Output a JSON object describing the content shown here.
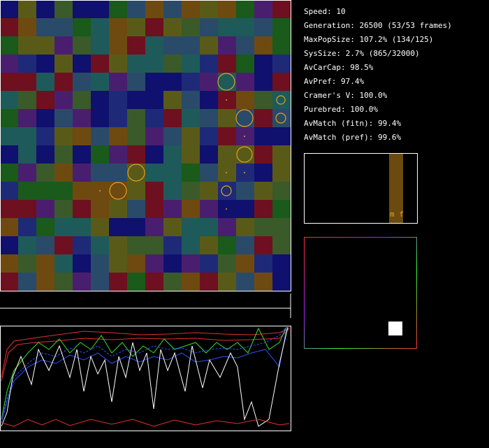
{
  "stats": [
    "Speed: 10",
    "Generation: 26500 (53/53 frames)",
    "MaxPopSize: 107.2% (134/125)",
    "SysSize: 2.7% (865/32000)",
    "AvCarCap: 98.5%",
    "AvPref: 97.4%",
    "Cramer's V: 100.0%",
    "Purebred: 100.0%",
    "AvMatch (fitn): 99.4%",
    "AvMatch (pref): 99.6%"
  ],
  "bar_panel": {
    "label": "m f"
  }
}
